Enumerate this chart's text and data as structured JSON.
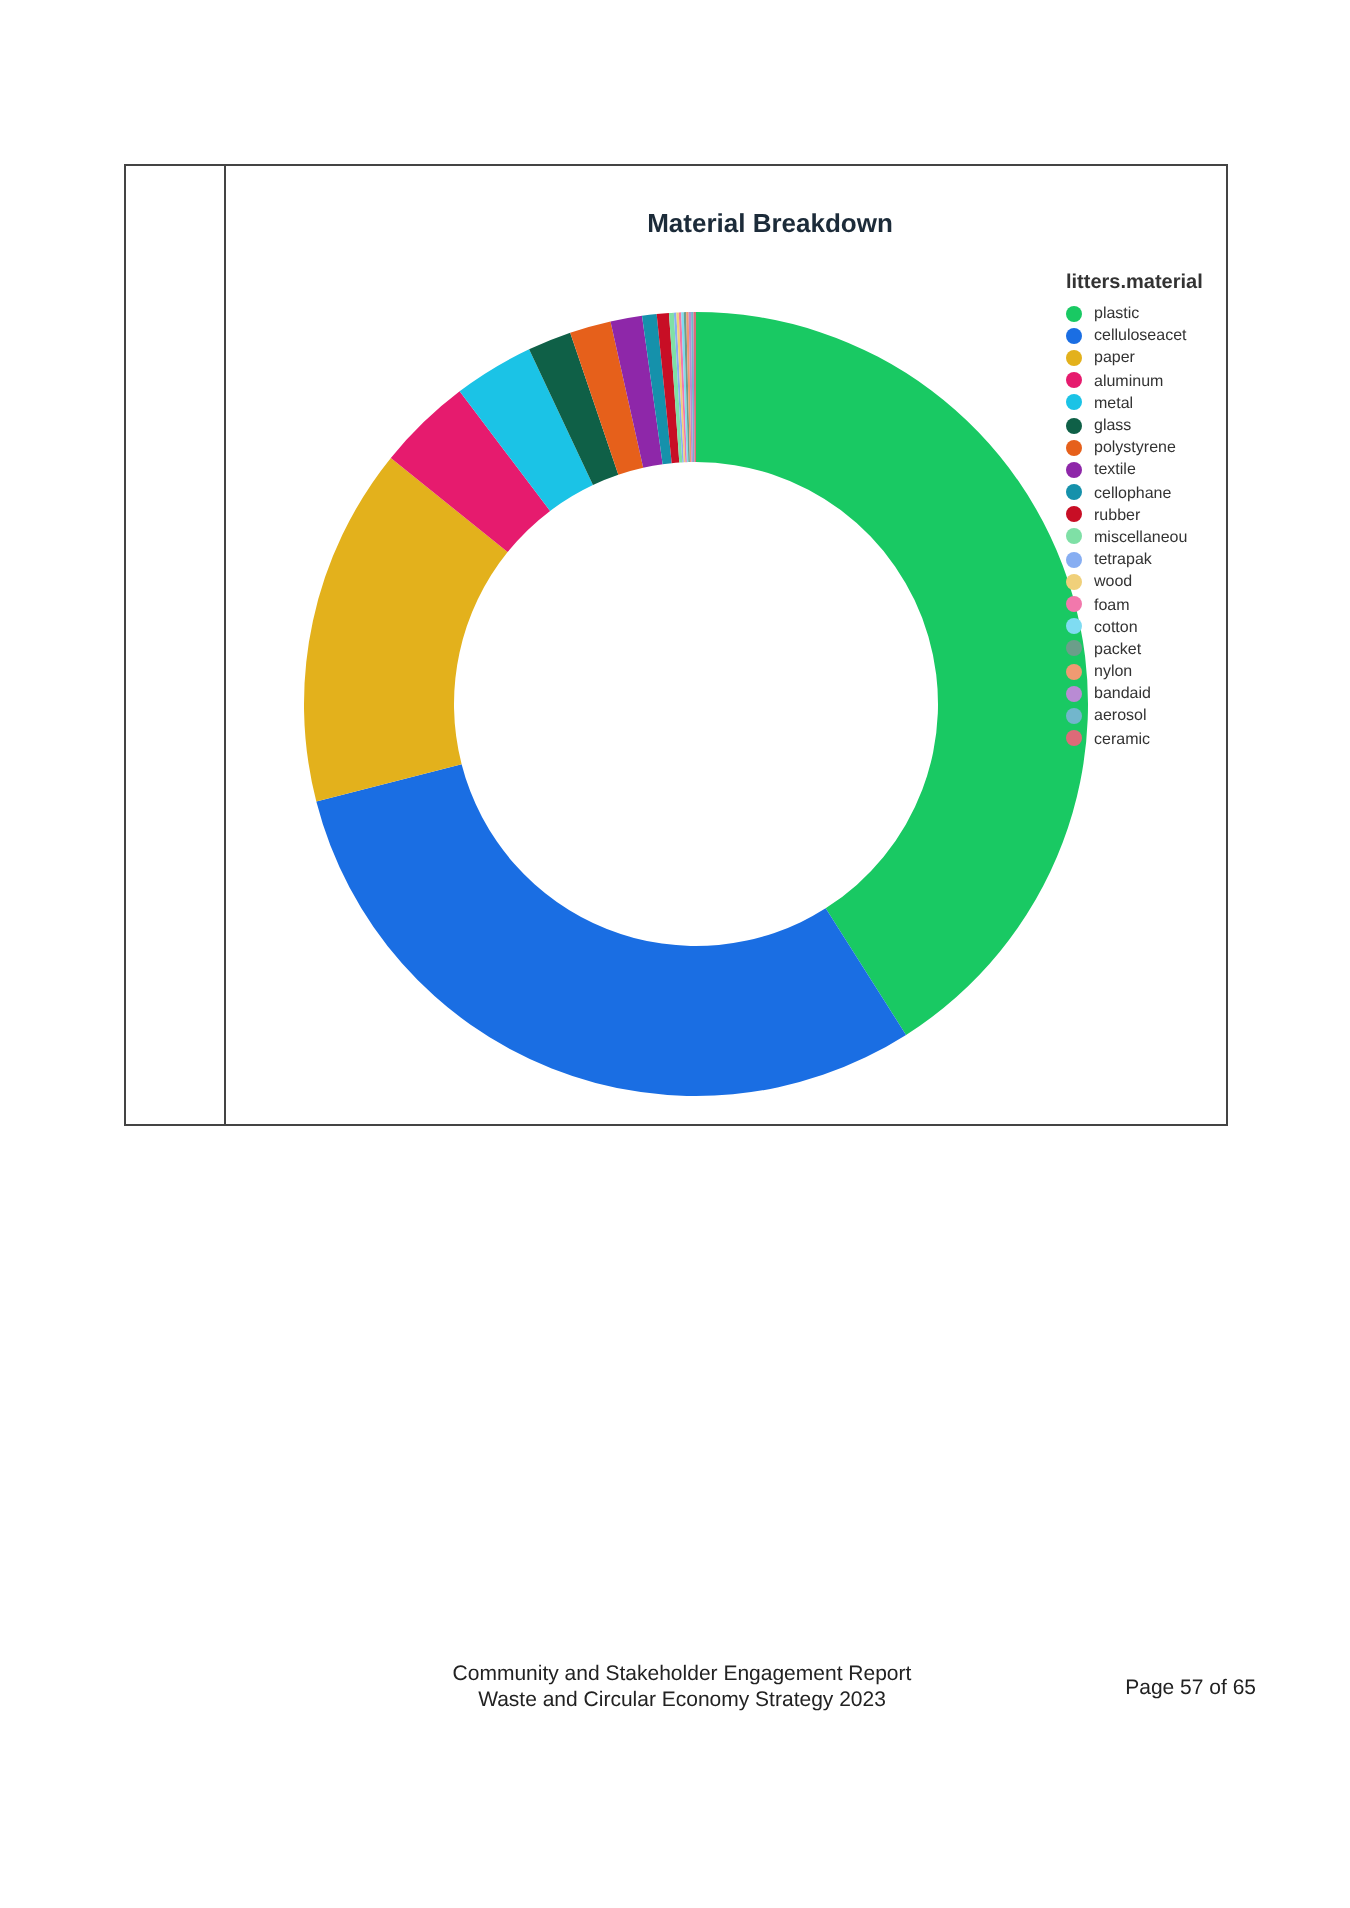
{
  "chart_data": {
    "type": "donut",
    "title": "Material Breakdown",
    "legend_title": "litters.material",
    "legend": "top right",
    "categories": [
      "plastic",
      "celluloseacet",
      "paper",
      "aluminum",
      "metal",
      "glass",
      "polystyrene",
      "textile",
      "cellophane",
      "rubber",
      "miscellaneou",
      "tetrapak",
      "wood",
      "foam",
      "cotton",
      "packet",
      "nylon",
      "bandaid",
      "aerosol",
      "ceramic"
    ],
    "values": [
      41,
      30,
      14.8,
      3.9,
      3.3,
      1.8,
      1.7,
      1.3,
      0.6,
      0.5,
      0.2,
      0.1,
      0.1,
      0.1,
      0.1,
      0.1,
      0.1,
      0.1,
      0.1,
      0.1
    ],
    "colors": [
      "#19c963",
      "#1a6ee3",
      "#e3b11c",
      "#e61b6e",
      "#1bc3e6",
      "#0f6047",
      "#e6601b",
      "#8e27a9",
      "#1591ab",
      "#c80e25",
      "#7fe0a6",
      "#87aef2",
      "#f0d07a",
      "#f278ac",
      "#7fdcf2",
      "#6b9e8a",
      "#f09a72",
      "#b98bd4",
      "#72b6cc",
      "#de6a78"
    ],
    "annotations": [
      "Community and Stakeholder Engagement Report",
      "Waste and Circular Economy Strategy 2023",
      "Page 57 of 65"
    ]
  }
}
